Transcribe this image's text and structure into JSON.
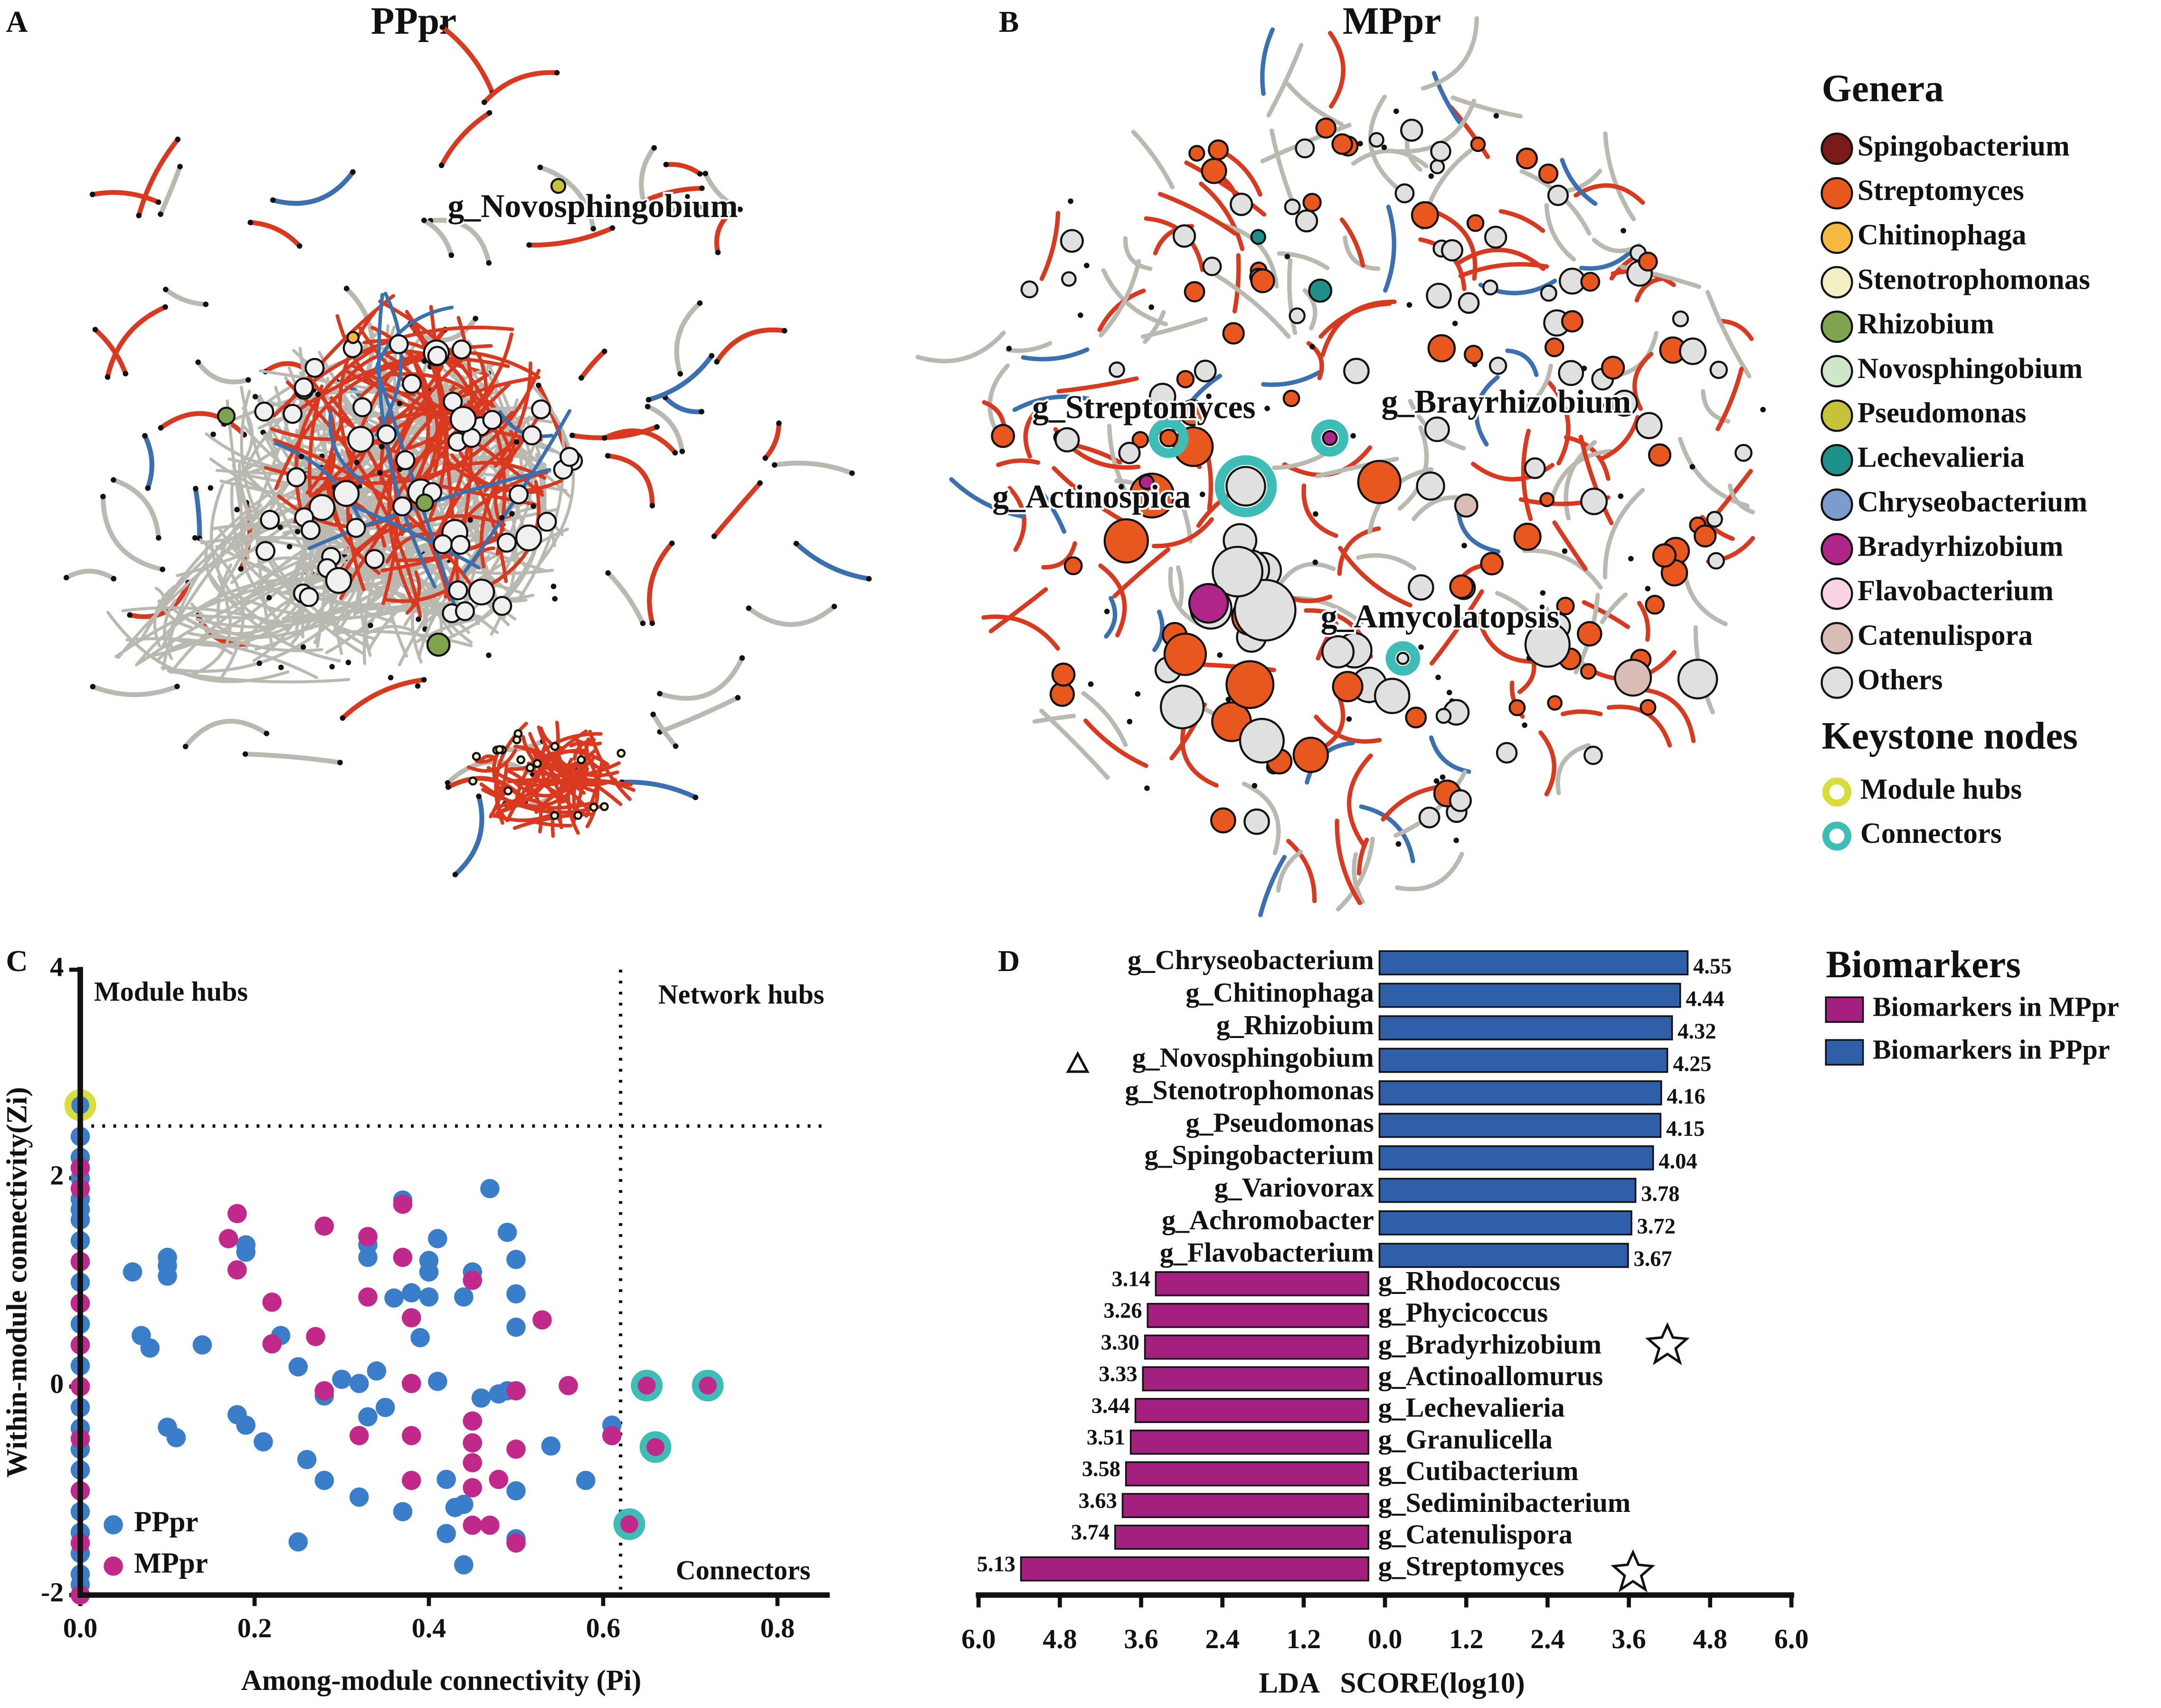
{
  "panel_labels": [
    "A",
    "B",
    "C",
    "D"
  ],
  "networks": [
    {
      "title": "PPpr",
      "labels": [
        "g_Novosphingobium"
      ]
    },
    {
      "title": "MPpr",
      "labels": [
        "g_Streptomyces",
        "g_Brayrhizobium",
        "g_Actinospica",
        "g_Amycolatopsis"
      ]
    }
  ],
  "genera_legend": {
    "title": "Genera",
    "items": [
      {
        "name": "Spingobacterium",
        "color": "#7a1a1a"
      },
      {
        "name": "Streptomyces",
        "color": "#e8581e"
      },
      {
        "name": "Chitinophaga",
        "color": "#f5b942"
      },
      {
        "name": "Stenotrophomonas",
        "color": "#f3f0c4"
      },
      {
        "name": "Rhizobium",
        "color": "#7fa34f"
      },
      {
        "name": "Novosphingobium",
        "color": "#cfe6c8"
      },
      {
        "name": "Pseudomonas",
        "color": "#c6c23a"
      },
      {
        "name": "Lechevalieria",
        "color": "#1f8f8a"
      },
      {
        "name": "Chryseobacterium",
        "color": "#7b9ccc"
      },
      {
        "name": "Bradyrhizobium",
        "color": "#b0258a"
      },
      {
        "name": "Flavobacterium",
        "color": "#f7d3e3"
      },
      {
        "name": "Catenulispora",
        "color": "#d8bcb5"
      },
      {
        "name": "Others",
        "color": "#e0e0e0"
      }
    ]
  },
  "keystone_legend": {
    "title": "Keystone nodes",
    "items": [
      {
        "name": "Module hubs",
        "color": "#d8dd3b"
      },
      {
        "name": "Connectors",
        "color": "#3dbdb5"
      }
    ]
  },
  "chart_data": [
    {
      "type": "scatter",
      "x_label": "Among-module connectivity (Pi)",
      "y_label": "Within-module connectivity(Zi)",
      "xlim": [
        0,
        0.86
      ],
      "ylim": [
        -2,
        4
      ],
      "xticks": [
        {
          "value": 0,
          "label": "0.0"
        },
        0.2,
        0.4,
        0.6,
        0.8
      ],
      "yticks": [
        -2,
        0,
        2,
        4
      ],
      "thresholds": {
        "x": 0.62,
        "y": 2.5
      },
      "annotations": [
        "Module hubs",
        "Network hubs",
        "Connectors"
      ],
      "legend": "lower left",
      "series": [
        {
          "name": "PPpr",
          "color": "#3a7dc9",
          "x": [
            0,
            0,
            0,
            0,
            0,
            0,
            0,
            0,
            0,
            0,
            0,
            0,
            0,
            0,
            0,
            0,
            0,
            0,
            0,
            0,
            0,
            0,
            0,
            0,
            0,
            0.06,
            0.07,
            0.08,
            0.1,
            0.1,
            0.1,
            0.1,
            0.11,
            0.14,
            0.18,
            0.19,
            0.21,
            0.19,
            0.19,
            0.23,
            0.25,
            0.26,
            0.28,
            0.3,
            0.25,
            0.28,
            0.32,
            0.32,
            0.33,
            0.34,
            0.33,
            0.33,
            0.36,
            0.38,
            0.37,
            0.39,
            0.4,
            0.4,
            0.4,
            0.41,
            0.42,
            0.42,
            0.43,
            0.44,
            0.44,
            0.44,
            0.45,
            0.46,
            0.47,
            0.48,
            0.49,
            0.5,
            0.5,
            0.5,
            0.49,
            0.5,
            0.5,
            0.54,
            0.58,
            0.61,
            0.37,
            0.41,
            0.35,
            0.38
          ],
          "y": [
            2.7,
            2.4,
            2.2,
            2.0,
            1.8,
            1.7,
            1.6,
            1.4,
            1.2,
            1.0,
            0.8,
            0.6,
            0.4,
            0.2,
            0,
            -0.2,
            -0.4,
            -0.6,
            -0.8,
            -1.0,
            -1.2,
            -1.4,
            -1.6,
            -1.8,
            -1.9,
            1.1,
            0.49,
            0.37,
            1.24,
            1.16,
            1.06,
            -0.39,
            -0.49,
            0.4,
            -0.27,
            -0.37,
            -0.53,
            1.29,
            1.36,
            0.49,
            0.19,
            -0.7,
            -0.09,
            0.07,
            -1.49,
            -0.9,
            0.03,
            -1.06,
            -0.29,
            0.15,
            1.36,
            1.24,
            0.85,
            0.9,
            -1.2,
            0.47,
            0.86,
            1.21,
            1.1,
            0.05,
            -0.89,
            -1.41,
            -1.16,
            -1.71,
            -1.13,
            0.86,
            1.1,
            -0.11,
            1.9,
            -0.07,
            1.48,
            0.89,
            1.22,
            0.57,
            -0.04,
            -1.0,
            -1.46,
            -0.57,
            -0.9,
            -0.37,
            1.79,
            1.42,
            -0.2,
            0.03
          ]
        },
        {
          "name": "MPpr",
          "color": "#c0288a",
          "x": [
            0,
            0,
            0,
            0,
            0,
            0,
            0,
            0,
            0,
            0,
            0.17,
            0.18,
            0.18,
            0.22,
            0.22,
            0.27,
            0.28,
            0.28,
            0.33,
            0.33,
            0.32,
            0.37,
            0.37,
            0.38,
            0.38,
            0.38,
            0.38,
            0.45,
            0.45,
            0.45,
            0.45,
            0.45,
            0.45,
            0.47,
            0.48,
            0.5,
            0.5,
            0.53,
            0.56,
            0.61,
            0.5,
            0.65,
            0.72,
            0.66,
            0.63
          ],
          "y": [
            2.1,
            1.9,
            1.2,
            0.8,
            0.4,
            0,
            -0.5,
            -1.0,
            -1.5,
            -2.0,
            1.42,
            1.66,
            1.12,
            0.81,
            0.41,
            0.48,
            1.54,
            -0.04,
            1.44,
            0.86,
            -0.47,
            1.75,
            1.24,
            0.66,
            0.03,
            -0.47,
            -0.9,
            1.02,
            -0.33,
            -0.54,
            -0.73,
            -0.97,
            -1.33,
            -1.33,
            -0.89,
            -0.6,
            -1.5,
            0.64,
            0.01,
            -0.47,
            -0.04,
            0.01,
            0.01,
            -0.58,
            -1.32
          ]
        }
      ],
      "keystone": {
        "module_hubs": {
          "x": [
            0
          ],
          "y": [
            2.7
          ]
        },
        "connectors": {
          "x": [
            0.65,
            0.72,
            0.66,
            0.63
          ],
          "y": [
            0.01,
            0.01,
            -0.58,
            -1.32
          ]
        }
      }
    },
    {
      "type": "bar",
      "orientation": "horizontal",
      "x_label": "LDA   SCORE(log10)",
      "xlim": [
        -6,
        6
      ],
      "xticks": [
        {
          "value": -6,
          "label": "6.0"
        },
        {
          "value": -4.8,
          "label": "4.8"
        },
        {
          "value": -3.6,
          "label": "3.6"
        },
        {
          "value": -2.4,
          "label": "2.4"
        },
        {
          "value": -1.2,
          "label": "1.2"
        },
        {
          "value": 0,
          "label": "0.0"
        },
        1.2,
        2.4,
        3.6,
        4.8,
        {
          "value": 6,
          "label": "6.0"
        }
      ],
      "legend_title": "Biomarkers",
      "series": [
        {
          "name": "Biomarkers in MPpr",
          "color": "#a4207e",
          "direction": "left",
          "categories": [
            "g_Rhodococcus",
            "g_Phycicoccus",
            "g_Bradyrhizobium",
            "g_Actinoallomurus",
            "g_Lechevalieria",
            "g_Granulicella",
            "g_Cutibacterium",
            "g_Sediminibacterium",
            "g_Catenulispora",
            "g_Streptomyces"
          ],
          "values": [
            3.14,
            3.26,
            3.3,
            3.33,
            3.44,
            3.51,
            3.58,
            3.63,
            3.74,
            5.13
          ],
          "value_labels": [
            "3.14",
            "3.26",
            "3.30",
            "3.33",
            "3.44",
            "3.51",
            "3.58",
            "3.63",
            "3.74",
            "5.13"
          ]
        },
        {
          "name": "Biomarkers in PPpr",
          "color": "#2f5fa8",
          "direction": "right",
          "categories": [
            "g_Chryseobacterium",
            "g_Chitinophaga",
            "g_Rhizobium",
            "g_Novosphingobium",
            "g_Stenotrophomonas",
            "g_Pseudomonas",
            "g_Spingobacterium",
            "g_Variovorax",
            "g_Achromobacter",
            "g_Flavobacterium"
          ],
          "values": [
            4.55,
            4.44,
            4.32,
            4.25,
            4.16,
            4.15,
            4.04,
            3.78,
            3.72,
            3.67
          ]
        }
      ]
    }
  ]
}
